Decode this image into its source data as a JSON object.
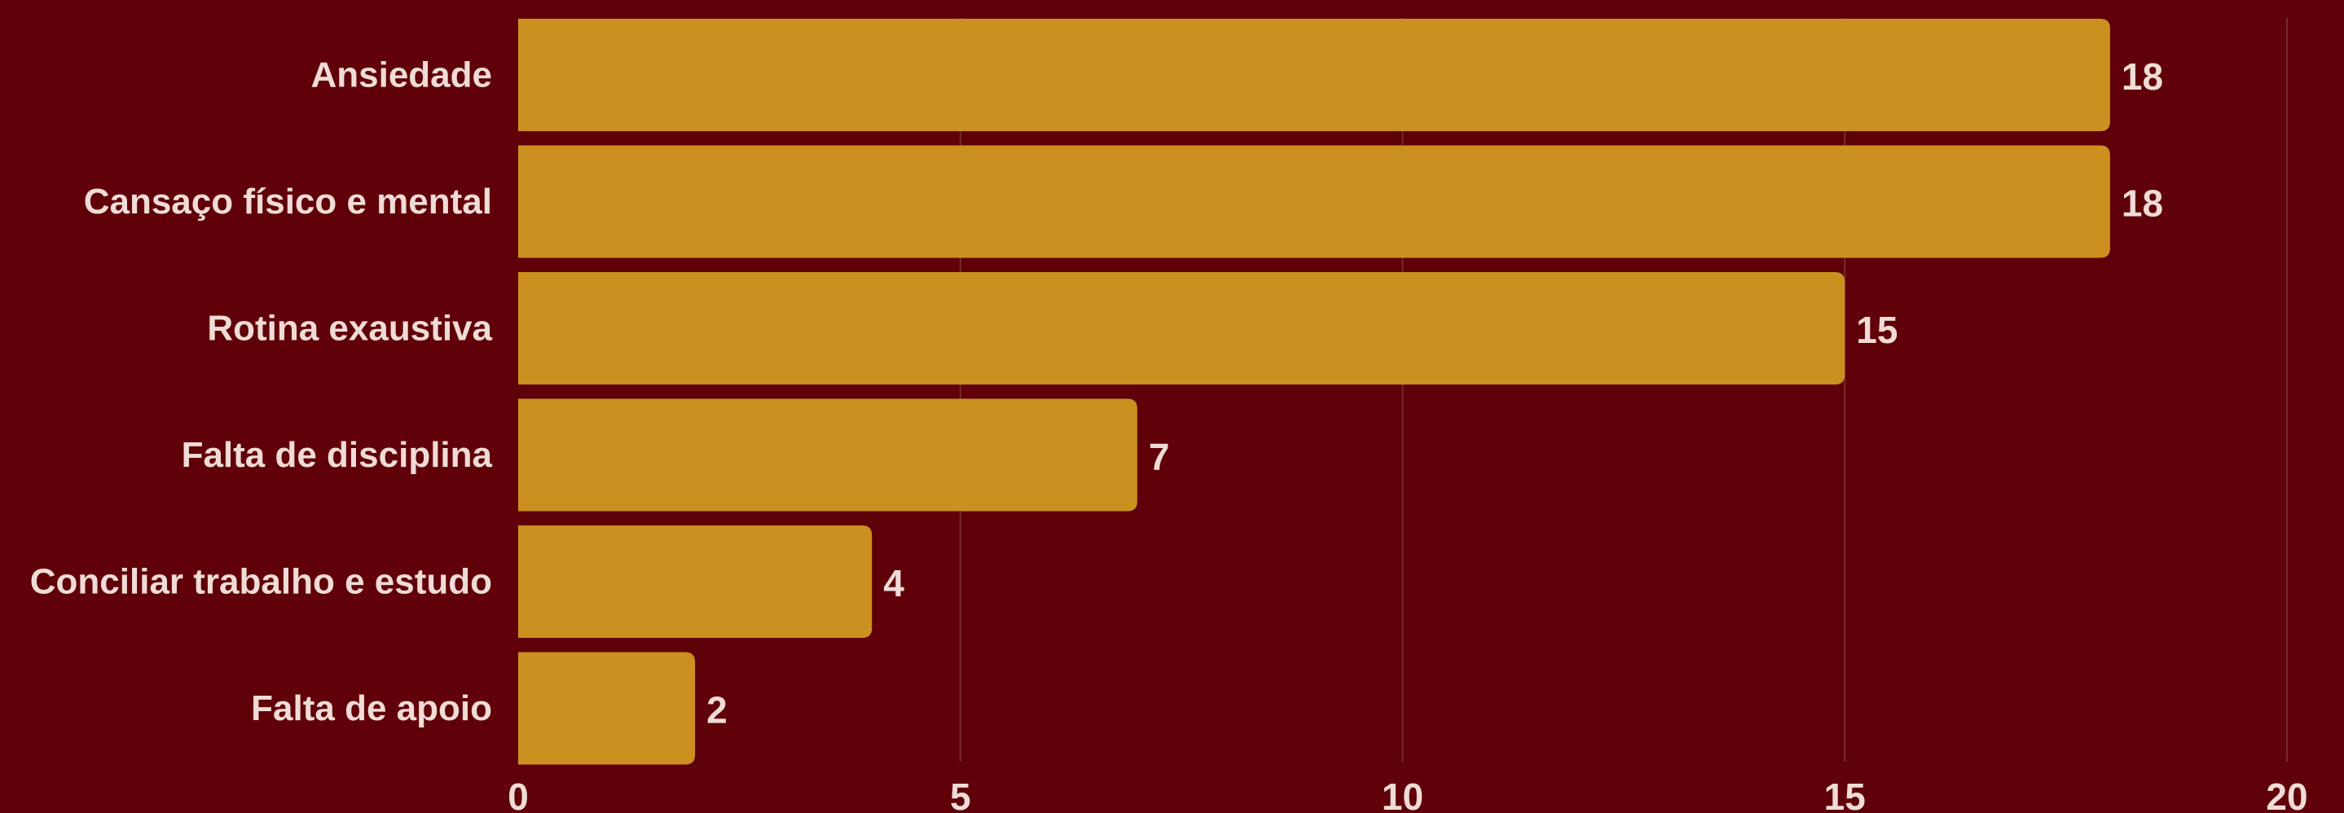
{
  "colors": {
    "background": "#600009",
    "bar": "#cc9020",
    "text": "#f0dcd6",
    "grid": "#7a2a2f"
  },
  "chart_data": {
    "type": "bar",
    "orientation": "horizontal",
    "title": "",
    "xlabel": "",
    "ylabel": "",
    "categories": [
      "Ansiedade",
      "Cansaço físico e mental",
      "Rotina exaustiva",
      "Falta de disciplina",
      "Conciliar trabalho e estudo",
      "Falta de apoio"
    ],
    "values": [
      18,
      18,
      15,
      7,
      4,
      2
    ],
    "xlim": [
      0,
      20
    ],
    "xticks": [
      0,
      5,
      10,
      15,
      20
    ],
    "grid": "vertical",
    "data_labels": true,
    "legend": "none"
  }
}
